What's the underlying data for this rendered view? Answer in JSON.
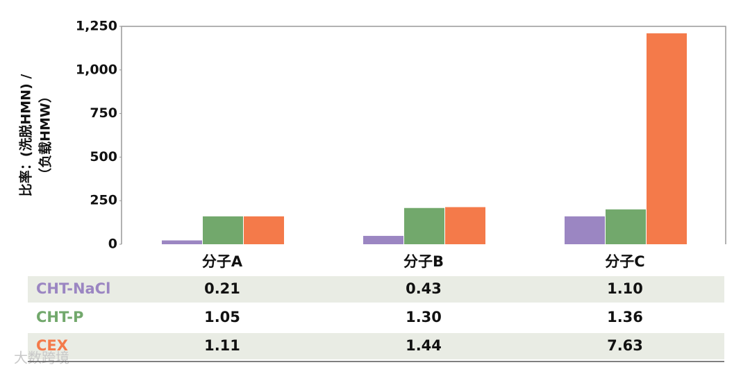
{
  "chart_data": {
    "type": "bar",
    "ylabel": [
      "比率：(洗脱HMN) /",
      "（负载HMW）"
    ],
    "categories": [
      "分子A",
      "分子B",
      "分子C"
    ],
    "series": [
      {
        "name": "CHT-NaCl",
        "color": "#9b86c2",
        "values": [
          22,
          48,
          160
        ],
        "table_values": [
          "0.21",
          "0.43",
          "1.10"
        ]
      },
      {
        "name": "CHT-P",
        "color": "#72a86c",
        "values": [
          160,
          208,
          200
        ],
        "table_values": [
          "1.05",
          "1.30",
          "1.36"
        ]
      },
      {
        "name": "CEX",
        "color": "#f47a4a",
        "values": [
          160,
          213,
          1210
        ],
        "table_values": [
          "1.11",
          "1.44",
          "7.63"
        ]
      }
    ],
    "ylim": [
      0,
      1250
    ],
    "yticks": [
      0,
      250,
      500,
      750,
      {
        "value": 1000,
        "label": "1,000"
      },
      {
        "value": 1250,
        "label": "1,250"
      }
    ],
    "watermark": "大数跨境"
  }
}
